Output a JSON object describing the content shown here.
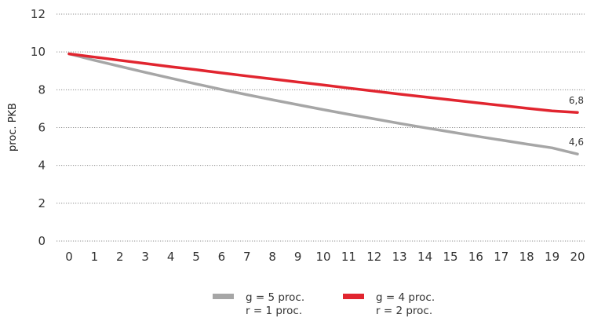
{
  "chart_data": {
    "type": "line",
    "ylabel": "proc. PKB",
    "xlabel": "",
    "title": "",
    "x": [
      0,
      1,
      2,
      3,
      4,
      5,
      6,
      7,
      8,
      9,
      10,
      11,
      12,
      13,
      14,
      15,
      16,
      17,
      18,
      19,
      20
    ],
    "x_ticks": [
      "0",
      "1",
      "2",
      "3",
      "4",
      "5",
      "6",
      "7",
      "8",
      "9",
      "10",
      "11",
      "12",
      "13",
      "14",
      "15",
      "16",
      "17",
      "18",
      "19",
      "20"
    ],
    "ylim": [
      0,
      12
    ],
    "y_ticks": [
      "0",
      "2",
      "4",
      "6",
      "8",
      "10",
      "12"
    ],
    "grid": "horizontal dotted",
    "legend_position": "bottom",
    "series": [
      {
        "name": "g = 5 proc.",
        "name_line2": "r = 1 proc.",
        "color": "#a6a6a6",
        "values": [
          9.9,
          9.56,
          9.24,
          8.92,
          8.61,
          8.31,
          8.02,
          7.74,
          7.47,
          7.21,
          6.95,
          6.7,
          6.46,
          6.22,
          5.99,
          5.77,
          5.55,
          5.34,
          5.13,
          4.93,
          4.6
        ],
        "end_label": "4,6"
      },
      {
        "name": "g = 4 proc.",
        "name_line2": "r = 2 proc.",
        "color": "#e1252f",
        "values": [
          9.9,
          9.73,
          9.56,
          9.39,
          9.22,
          9.06,
          8.89,
          8.73,
          8.57,
          8.41,
          8.25,
          8.09,
          7.93,
          7.77,
          7.62,
          7.47,
          7.32,
          7.17,
          7.02,
          6.88,
          6.8
        ],
        "end_label": "6,8"
      }
    ]
  }
}
